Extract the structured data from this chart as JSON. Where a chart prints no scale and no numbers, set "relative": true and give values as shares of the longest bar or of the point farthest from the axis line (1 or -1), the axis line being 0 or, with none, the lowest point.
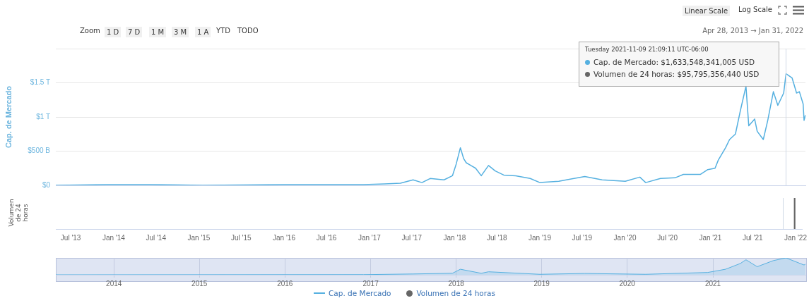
{
  "chart_data": [
    {
      "type": "line",
      "ylabel": "Cap. de Mercado",
      "xlim": [
        "2013-04-28",
        "2022-01-31"
      ],
      "ylim": [
        0,
        2000000000000
      ],
      "yticks": [
        {
          "value": 0,
          "label": "$0"
        },
        {
          "value": 500000000000,
          "label": "$500 B"
        },
        {
          "value": 1000000000000,
          "label": "$1 T"
        },
        {
          "value": 1500000000000,
          "label": "$1.5 T"
        },
        {
          "value": 2000000000000,
          "label": null
        }
      ],
      "grid": "y",
      "tick_labels": "y",
      "legend": "bottom",
      "marker": "none",
      "ref_lines": [
        {
          "axis": "x",
          "value": "2021-11-09",
          "color": "#cfd8e6"
        }
      ],
      "x": [
        "2013-04-28",
        "2013-12-01",
        "2014-06-01",
        "2015-01-15",
        "2016-01-01",
        "2016-12-01",
        "2017-03-01",
        "2017-05-08",
        "2017-07-01",
        "2017-08-08",
        "2017-09-12",
        "2017-11-10",
        "2017-12-16",
        "2018-01-01",
        "2018-01-19",
        "2018-02-02",
        "2018-02-13",
        "2018-03-05",
        "2018-03-25",
        "2018-04-18",
        "2018-05-19",
        "2018-06-17",
        "2018-07-23",
        "2018-09-12",
        "2018-11-13",
        "2018-12-24",
        "2019-03-15",
        "2019-07-04",
        "2019-09-16",
        "2019-12-24",
        "2020-02-24",
        "2020-03-20",
        "2020-05-22",
        "2020-07-23",
        "2020-08-28",
        "2020-11-09",
        "2020-12-10",
        "2021-01-10",
        "2021-01-24",
        "2021-02-24",
        "2021-03-13",
        "2021-04-07",
        "2021-04-28",
        "2021-05-22",
        "2021-06-03",
        "2021-06-28",
        "2021-07-09",
        "2021-08-04",
        "2021-08-23",
        "2021-09-16",
        "2021-10-05",
        "2021-10-30",
        "2021-11-09",
        "2021-12-05",
        "2021-12-24",
        "2022-01-05",
        "2022-01-21",
        "2022-01-25",
        "2022-01-31"
      ],
      "series": [
        {
          "name": "Cap. de Mercado",
          "color": "#55b0e0",
          "values": [
            0,
            10000000000,
            10000000000,
            0,
            10000000000,
            10000000000,
            20000000000,
            30000000000,
            80000000000,
            40000000000,
            100000000000,
            80000000000,
            140000000000,
            310000000000,
            550000000000,
            390000000000,
            330000000000,
            290000000000,
            250000000000,
            140000000000,
            290000000000,
            210000000000,
            150000000000,
            140000000000,
            100000000000,
            40000000000,
            60000000000,
            130000000000,
            80000000000,
            60000000000,
            120000000000,
            40000000000,
            100000000000,
            110000000000,
            160000000000,
            160000000000,
            230000000000,
            250000000000,
            370000000000,
            550000000000,
            670000000000,
            750000000000,
            1090000000000,
            1450000000000,
            870000000000,
            970000000000,
            790000000000,
            670000000000,
            950000000000,
            1370000000000,
            1170000000000,
            1350000000000,
            1633548341005,
            1570000000000,
            1350000000000,
            1370000000000,
            1190000000000,
            950000000000,
            1030000000000
          ]
        }
      ],
      "annotations": [
        "Linear Scale",
        "Log Scale",
        "Zoom",
        "1 D",
        "7 D",
        "1 M",
        "3 M",
        "1 A",
        "YTD",
        "TODO",
        "Apr 28, 2013 → Jan 31, 2022",
        "Tuesday 2021-11-09 21:09:11 UTC-06:00",
        "Cap. de Mercado: $1,633,548,341,005 USD",
        "Volumen de 24 horas: $95,795,356,440 USD"
      ]
    },
    {
      "type": "bar",
      "ylabel": "Volumen de 24 horas",
      "relative": true,
      "xlim": [
        "2013-04-28",
        "2022-01-31"
      ],
      "xticks": [
        {
          "value": "2013-07-01",
          "label": "Jul '13"
        },
        {
          "value": "2014-01-01",
          "label": "Jan '14"
        },
        {
          "value": "2014-07-01",
          "label": "Jul '14"
        },
        {
          "value": "2015-01-01",
          "label": "Jan '15"
        },
        {
          "value": "2015-07-01",
          "label": "Jul '15"
        },
        {
          "value": "2016-01-01",
          "label": "Jan '16"
        },
        {
          "value": "2016-07-01",
          "label": "Jul '16"
        },
        {
          "value": "2017-01-01",
          "label": "Jan '17"
        },
        {
          "value": "2017-07-01",
          "label": "Jul '17"
        },
        {
          "value": "2018-01-01",
          "label": "Jan '18"
        },
        {
          "value": "2018-07-01",
          "label": "Jul '18"
        },
        {
          "value": "2019-01-01",
          "label": "Jan '19"
        },
        {
          "value": "2019-07-01",
          "label": "Jul '19"
        },
        {
          "value": "2020-01-01",
          "label": "Jan '20"
        },
        {
          "value": "2020-07-01",
          "label": "Jul '20"
        },
        {
          "value": "2021-01-01",
          "label": "Jan '21"
        },
        {
          "value": "2021-07-01",
          "label": "Jul '21"
        },
        {
          "value": "2022-01-01",
          "label": "Jan '22"
        }
      ],
      "tick_labels": "x",
      "legend": "bottom",
      "x": [
        "2021-12-28"
      ],
      "ref_lines": [
        {
          "axis": "x",
          "value": "2021-11-09",
          "color": "#cfd8e6"
        }
      ],
      "series": [
        {
          "name": "Volumen de 24 horas",
          "color": "#666666",
          "values": [
            1
          ]
        }
      ]
    },
    {
      "type": "area",
      "relative": true,
      "xlim": [
        "2013-04-28",
        "2022-01-31"
      ],
      "xticks": [
        {
          "value": "2014-01-01",
          "label": "2014"
        },
        {
          "value": "2015-01-01",
          "label": "2015"
        },
        {
          "value": "2016-01-01",
          "label": "2016"
        },
        {
          "value": "2017-01-01",
          "label": "2017"
        },
        {
          "value": "2018-01-01",
          "label": "2018"
        },
        {
          "value": "2019-01-01",
          "label": "2019"
        },
        {
          "value": "2020-01-01",
          "label": "2020"
        },
        {
          "value": "2021-01-01",
          "label": "2021"
        }
      ],
      "grid": "x",
      "tick_labels": "x",
      "x": [
        "2013-04-28",
        "2016-12-01",
        "2017-07-01",
        "2017-12-16",
        "2018-01-19",
        "2018-04-18",
        "2018-05-19",
        "2018-12-24",
        "2019-07-04",
        "2020-03-20",
        "2020-12-10",
        "2021-02-24",
        "2021-04-28",
        "2021-05-22",
        "2021-07-09",
        "2021-09-16",
        "2021-11-09",
        "2022-01-25",
        "2022-01-31"
      ],
      "series": [
        {
          "color": "#55b0e0",
          "values": [
            0,
            0.01,
            0.05,
            0.09,
            0.33,
            0.09,
            0.18,
            0.03,
            0.08,
            0.03,
            0.14,
            0.33,
            0.67,
            0.89,
            0.48,
            0.84,
            1,
            0.58,
            0.63
          ]
        }
      ]
    }
  ]
}
